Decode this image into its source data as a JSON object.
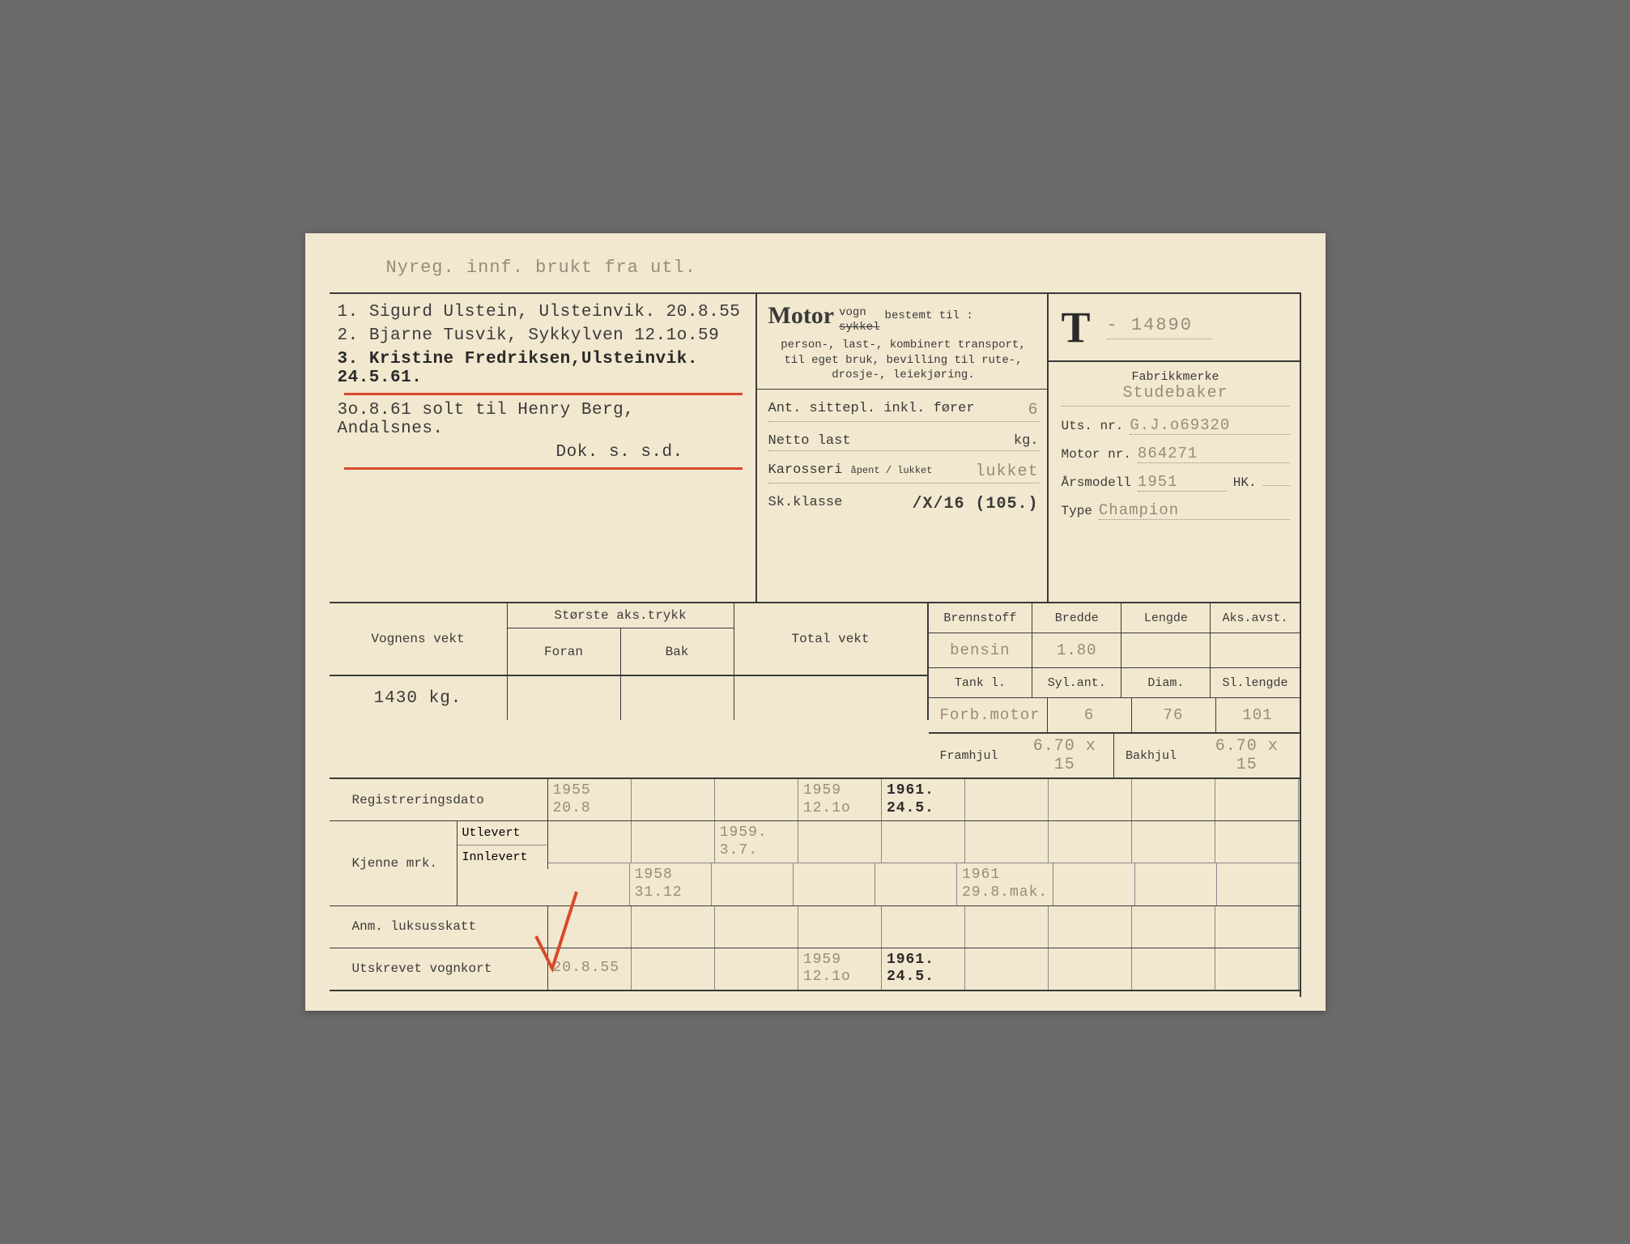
{
  "header_note": "Nyreg. innf. brukt fra utl.",
  "owners": [
    {
      "n": "1.",
      "text": "Sigurd Ulstein, Ulsteinvik. 20.8.55",
      "bold": false
    },
    {
      "n": "2.",
      "text": "Bjarne Tusvik, Sykkylven   12.1o.59",
      "bold": false
    },
    {
      "n": "3.",
      "text": "Kristine Fredriksen,Ulsteinvik. 24.5.61.",
      "bold": true
    }
  ],
  "sale_note1": "3o.8.61 solt til Henry Berg, Andalsnes.",
  "sale_note2": "Dok. s. s.d.",
  "motor": {
    "title": "Motor",
    "vogn": "vogn",
    "sykkel": "sykkel",
    "bestemt": "bestemt til :",
    "desc": "person-, last-, kombinert transport, til eget bruk, bevilling til rute-, drosje-, leiekjøring.",
    "sittepl_label": "Ant. sittepl. inkl. fører",
    "sittepl": "6",
    "netto_label": "Netto last",
    "netto_unit": "kg.",
    "karosseri_label": "Karosseri",
    "karosseri_sub": "åpent / lukket",
    "karosseri": "lukket",
    "skklasse_label": "Sk.klasse",
    "skklasse": "/X/16 (105.)"
  },
  "reg": {
    "prefix": "T",
    "number": "- 14890",
    "fabrikkmerke_label": "Fabrikkmerke",
    "fabrikkmerke": "Studebaker",
    "utsnr_label": "Uts. nr.",
    "utsnr": "G.J.o69320",
    "motornr_label": "Motor nr.",
    "motornr": "864271",
    "arsmodell_label": "Årsmodell",
    "arsmodell": "1951",
    "hk_label": "HK.",
    "type_label": "Type",
    "type": "Champion"
  },
  "weight": {
    "vognens_label": "Vognens vekt",
    "vognens": "1430 kg.",
    "storste_label": "Største aks.trykk",
    "foran_label": "Foran",
    "bak_label": "Bak",
    "total_label": "Total vekt"
  },
  "specs": {
    "brennstoff_label": "Brennstoff",
    "brennstoff": "bensin",
    "bredde_label": "Bredde",
    "bredde": "1.80",
    "lengde_label": "Lengde",
    "lengde": "",
    "aksavst_label": "Aks.avst.",
    "aksavst": "",
    "tank_label": "Tank        l.",
    "sylant_label": "Syl.ant.",
    "diam_label": "Diam.",
    "sllengde_label": "Sl.lengde",
    "forbmotor_label": "Forb.motor",
    "sylant": "6",
    "diam": "76",
    "sllengde": "101",
    "framhjul_label": "Framhjul",
    "framhjul": "6.70 x 15",
    "bakhjul_label": "Bakhjul",
    "bakhjul": "6.70 x 15"
  },
  "bottom": {
    "regdato_label": "Registreringsdato",
    "regdato": [
      "1955\n20.8",
      "",
      "",
      "1959\n12.1o",
      "1961.\n24.5.",
      "",
      "",
      "",
      ""
    ],
    "kjenne_label": "Kjenne mrk.",
    "utlevert_label": "Utlevert",
    "utlevert": [
      "",
      "",
      "1959.\n3.7.",
      "",
      "",
      "",
      "",
      "",
      ""
    ],
    "innlevert_label": "Innlevert",
    "innlevert": [
      "",
      "1958\n31.12",
      "",
      "",
      "",
      "1961\n29.8.mak.",
      "",
      "",
      ""
    ],
    "anm_label": "Anm. luksusskatt",
    "utskrevet_label": "Utskrevet vognkort",
    "utskrevet": [
      "20.8.55",
      "",
      "",
      "1959\n12.1o",
      "1961.\n24.5.",
      "",
      "",
      "",
      ""
    ]
  },
  "colors": {
    "paper": "#f2e8cf",
    "ink": "#3a3a3a",
    "typed": "#9a8a7a",
    "red": "#d84a2a"
  }
}
